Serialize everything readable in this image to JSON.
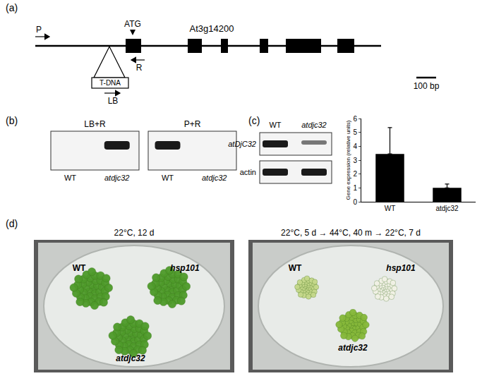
{
  "panels": {
    "a": {
      "label": "(a)",
      "gene": "At3g14200",
      "start_codon": "ATG",
      "primers": {
        "forward": "P",
        "reverse": "R",
        "border": "LB"
      },
      "insert": "T-DNA",
      "scale_bar": "100 bp"
    },
    "b": {
      "label": "(b)",
      "gels": [
        {
          "title": "LB+R",
          "lanes": [
            "WT",
            "atdjc32"
          ],
          "bands": [
            false,
            true
          ]
        },
        {
          "title": "P+R",
          "lanes": [
            "WT",
            "atdjc32"
          ],
          "bands": [
            true,
            false
          ]
        }
      ]
    },
    "c": {
      "label": "(c)",
      "gel": {
        "lanes": [
          "WT",
          "atdjc32"
        ],
        "rows": [
          "atDjC32",
          "actin"
        ]
      }
    },
    "d": {
      "label": "(d)",
      "plates": [
        {
          "title": "22°C, 12 d",
          "genotypes": [
            "WT",
            "hsp101",
            "atdjc32"
          ]
        },
        {
          "title": "22°C, 5 d → 44°C, 40 m → 22°C, 7 d",
          "genotypes": [
            "WT",
            "hsp101",
            "atdjc32"
          ]
        }
      ]
    }
  },
  "chart_data": {
    "type": "bar",
    "categories": [
      "WT",
      "atdjc32"
    ],
    "values": [
      3.45,
      1.0
    ],
    "errors": [
      1.9,
      0.28
    ],
    "color": "#000000",
    "ylim": [
      0,
      6
    ],
    "yticks": [
      0,
      1,
      2,
      3,
      4,
      5,
      6
    ],
    "y_label": "Gene expression (relative units)",
    "grid": false
  }
}
